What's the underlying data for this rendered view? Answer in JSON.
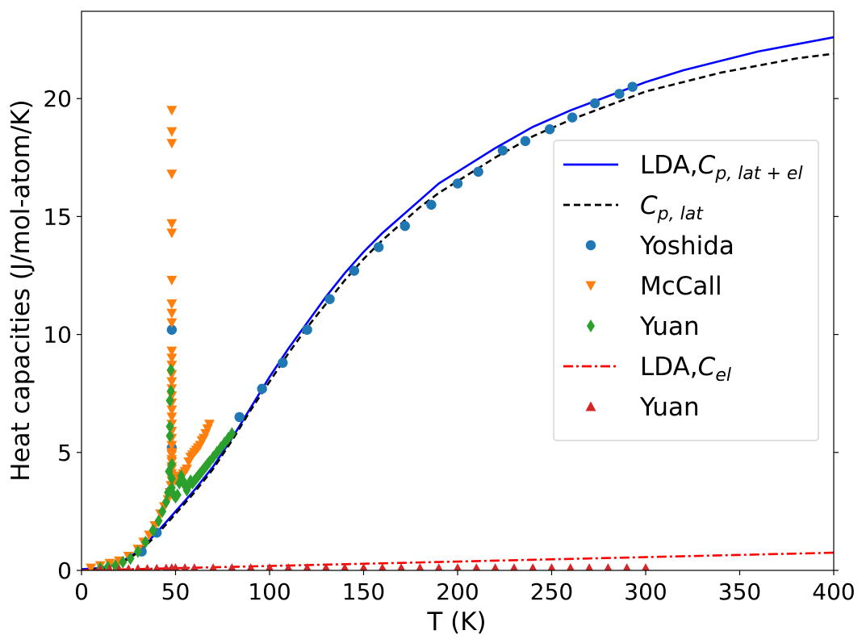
{
  "chart_data": {
    "type": "scatter",
    "xlabel": "T (K)",
    "ylabel": "Heat capacities (J/mol-atom/K)",
    "xlim": [
      0,
      400
    ],
    "ylim": [
      0,
      23.7
    ],
    "xticks": [
      0,
      50,
      100,
      150,
      200,
      250,
      300,
      350,
      400
    ],
    "yticks": [
      0,
      5,
      10,
      15,
      20
    ],
    "grid": false,
    "legend_position": "right",
    "colors": {
      "lda_total": "#0000ff",
      "cp_lat": "#000000",
      "yoshida": "#1f77b4",
      "mccall": "#ff7f0e",
      "yuan_green": "#2ca02c",
      "lda_el": "#ff0000",
      "yuan_red": "#d62728"
    },
    "legend": [
      {
        "key": "lda_total",
        "main": "LDA,",
        "math": "C",
        "sub": "p, lat + el",
        "style": "solid"
      },
      {
        "key": "cp_lat",
        "main": "",
        "math": "C",
        "sub": "p, lat",
        "style": "dashed"
      },
      {
        "key": "yoshida",
        "main": "Yoshida",
        "math": "",
        "sub": "",
        "style": "circle"
      },
      {
        "key": "mccall",
        "main": "McCall",
        "math": "",
        "sub": "",
        "style": "triangle-down"
      },
      {
        "key": "yuan_green",
        "main": "Yuan",
        "math": "",
        "sub": "",
        "style": "diamond"
      },
      {
        "key": "lda_el",
        "main": "LDA,",
        "math": "C",
        "sub": "el",
        "style": "dashdot"
      },
      {
        "key": "yuan_red",
        "main": "Yuan",
        "math": "",
        "sub": "",
        "style": "triangle-up"
      }
    ],
    "series": [
      {
        "key": "lda_total",
        "type": "line",
        "style": "solid",
        "x": [
          0,
          10,
          20,
          30,
          40,
          50,
          60,
          70,
          80,
          90,
          100,
          110,
          120,
          130,
          140,
          150,
          160,
          170,
          180,
          190,
          200,
          220,
          240,
          260,
          280,
          300,
          320,
          340,
          360,
          380,
          400
        ],
        "y": [
          0.05,
          0.1,
          0.3,
          0.8,
          1.6,
          2.5,
          3.4,
          4.4,
          5.6,
          6.9,
          8.2,
          9.4,
          10.5,
          11.6,
          12.6,
          13.5,
          14.3,
          15.0,
          15.7,
          16.4,
          16.9,
          17.9,
          18.8,
          19.5,
          20.1,
          20.7,
          21.2,
          21.6,
          22.0,
          22.3,
          22.6
        ]
      },
      {
        "key": "cp_lat",
        "type": "line",
        "style": "dashed",
        "x": [
          0,
          10,
          20,
          30,
          40,
          50,
          60,
          70,
          80,
          90,
          100,
          110,
          120,
          130,
          140,
          150,
          160,
          170,
          180,
          190,
          200,
          220,
          240,
          260,
          280,
          300,
          320,
          340,
          360,
          380,
          400
        ],
        "y": [
          0.0,
          0.05,
          0.25,
          0.75,
          1.5,
          2.4,
          3.3,
          4.3,
          5.5,
          6.8,
          8.0,
          9.2,
          10.3,
          11.3,
          12.3,
          13.2,
          14.0,
          14.7,
          15.4,
          16.0,
          16.5,
          17.5,
          18.4,
          19.1,
          19.7,
          20.3,
          20.7,
          21.1,
          21.4,
          21.7,
          21.9
        ]
      },
      {
        "key": "lda_el",
        "type": "line",
        "style": "dashdot",
        "x": [
          0,
          400
        ],
        "y": [
          0.0,
          0.75
        ]
      },
      {
        "key": "yoshida",
        "type": "scatter",
        "marker": "circle",
        "x": [
          32,
          40,
          48,
          48,
          84,
          96,
          107,
          120,
          132,
          145,
          158,
          172,
          186,
          200,
          211,
          224,
          236,
          249,
          261,
          273,
          286,
          293
        ],
        "y": [
          0.8,
          1.6,
          5.2,
          10.2,
          6.5,
          7.7,
          8.8,
          10.2,
          11.5,
          12.7,
          13.7,
          14.6,
          15.5,
          16.4,
          16.9,
          17.8,
          18.2,
          18.7,
          19.2,
          19.8,
          20.2,
          20.5
        ]
      },
      {
        "key": "mccall",
        "type": "scatter",
        "marker": "triangle-down",
        "x": [
          5,
          10,
          15,
          20,
          25,
          30,
          33,
          36,
          39,
          42,
          44,
          46,
          47,
          47.5,
          48,
          48,
          48,
          48,
          48,
          48,
          48,
          48,
          48,
          48,
          48,
          48,
          48,
          48,
          48,
          48,
          48,
          48,
          48,
          48,
          48,
          48,
          48,
          48,
          48,
          48,
          48,
          48,
          48,
          48,
          48,
          48,
          48,
          49,
          50,
          51,
          52,
          53,
          54,
          55,
          56,
          57,
          58,
          59,
          60,
          61,
          62,
          63,
          64,
          65,
          66,
          67,
          68
        ],
        "y": [
          0.1,
          0.2,
          0.3,
          0.4,
          0.6,
          0.9,
          1.2,
          1.5,
          1.9,
          2.4,
          2.7,
          3.0,
          3.3,
          3.6,
          4.0,
          4.4,
          4.7,
          5.0,
          5.3,
          5.6,
          5.9,
          6.2,
          6.5,
          6.8,
          7.1,
          7.4,
          7.7,
          8.0,
          8.3,
          8.7,
          9.0,
          9.3,
          10.5,
          10.9,
          11.3,
          12.3,
          14.3,
          14.7,
          16.8,
          18.1,
          18.6,
          19.5,
          3.8,
          4.1,
          4.3,
          4.6,
          4.9,
          3.9,
          3.8,
          3.9,
          4.0,
          4.0,
          4.1,
          4.2,
          4.3,
          4.6,
          4.8,
          4.9,
          5.0,
          5.1,
          5.2,
          5.3,
          5.5,
          5.6,
          5.8,
          6.0,
          6.2
        ]
      },
      {
        "key": "yuan_green",
        "type": "scatter",
        "marker": "diamond",
        "x": [
          10,
          14,
          18,
          22,
          26,
          30,
          34,
          38,
          41,
          43,
          45,
          46,
          46.5,
          47,
          47,
          47,
          47.5,
          47.5,
          48,
          48,
          48,
          49,
          50,
          51,
          52,
          53,
          54,
          55,
          56,
          57,
          58,
          59,
          60,
          61,
          62,
          63,
          64,
          65,
          66,
          67,
          68,
          70,
          72,
          74,
          76,
          78,
          80
        ],
        "y": [
          0.1,
          0.15,
          0.2,
          0.35,
          0.5,
          0.8,
          1.2,
          1.7,
          2.1,
          2.5,
          2.9,
          3.3,
          4.2,
          5.7,
          6.1,
          7.2,
          7.6,
          8.5,
          4.5,
          3.9,
          3.5,
          3.2,
          3.1,
          3.2,
          3.7,
          4.0,
          3.8,
          3.6,
          3.4,
          3.6,
          3.8,
          3.7,
          3.8,
          3.9,
          4.0,
          4.1,
          4.2,
          4.3,
          4.4,
          4.5,
          4.6,
          4.8,
          5.0,
          5.2,
          5.4,
          5.6,
          5.8
        ]
      },
      {
        "key": "yuan_red",
        "type": "scatter",
        "marker": "triangle-up",
        "x": [
          10,
          15,
          20,
          25,
          30,
          35,
          40,
          45,
          48,
          50,
          55,
          60,
          70,
          80,
          90,
          100,
          110,
          120,
          130,
          140,
          150,
          160,
          170,
          180,
          190,
          200,
          210,
          220,
          230,
          240,
          250,
          260,
          270,
          280,
          290,
          300
        ],
        "y": [
          0.02,
          0.03,
          0.03,
          0.04,
          0.05,
          0.05,
          0.06,
          0.07,
          0.08,
          0.08,
          0.08,
          0.08,
          0.08,
          0.08,
          0.08,
          0.08,
          0.08,
          0.08,
          0.08,
          0.08,
          0.08,
          0.08,
          0.08,
          0.08,
          0.08,
          0.08,
          0.08,
          0.08,
          0.08,
          0.08,
          0.08,
          0.08,
          0.08,
          0.08,
          0.08,
          0.08
        ]
      }
    ]
  }
}
